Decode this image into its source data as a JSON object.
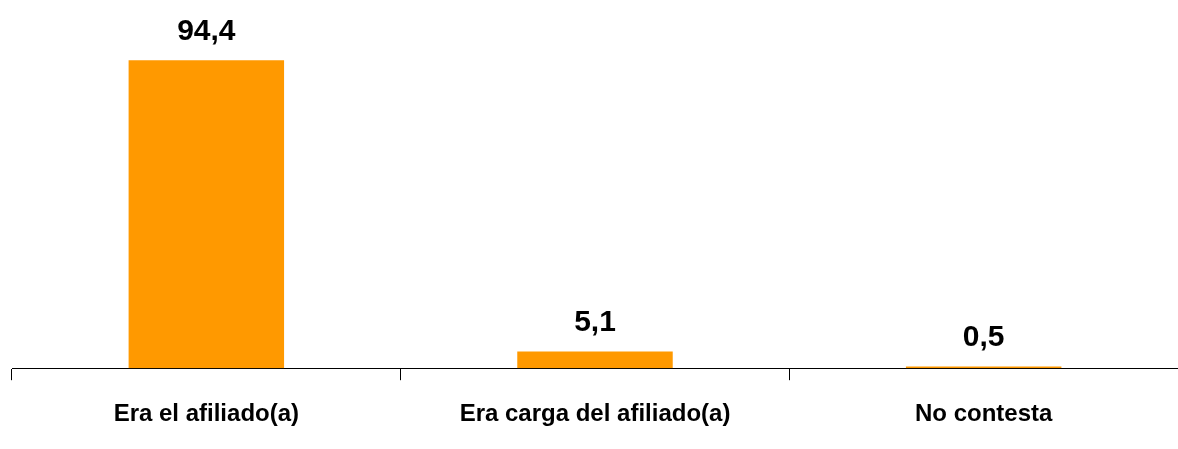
{
  "chart_data": {
    "type": "bar",
    "categories": [
      "Era el afiliado(a)",
      "Era carga del afiliado(a)",
      "No contesta"
    ],
    "values": [
      94.4,
      5.1,
      0.5
    ],
    "value_labels": [
      "94,4",
      "5,1",
      "0,5"
    ],
    "color": "#ff9900",
    "grid": false,
    "legend": false
  }
}
